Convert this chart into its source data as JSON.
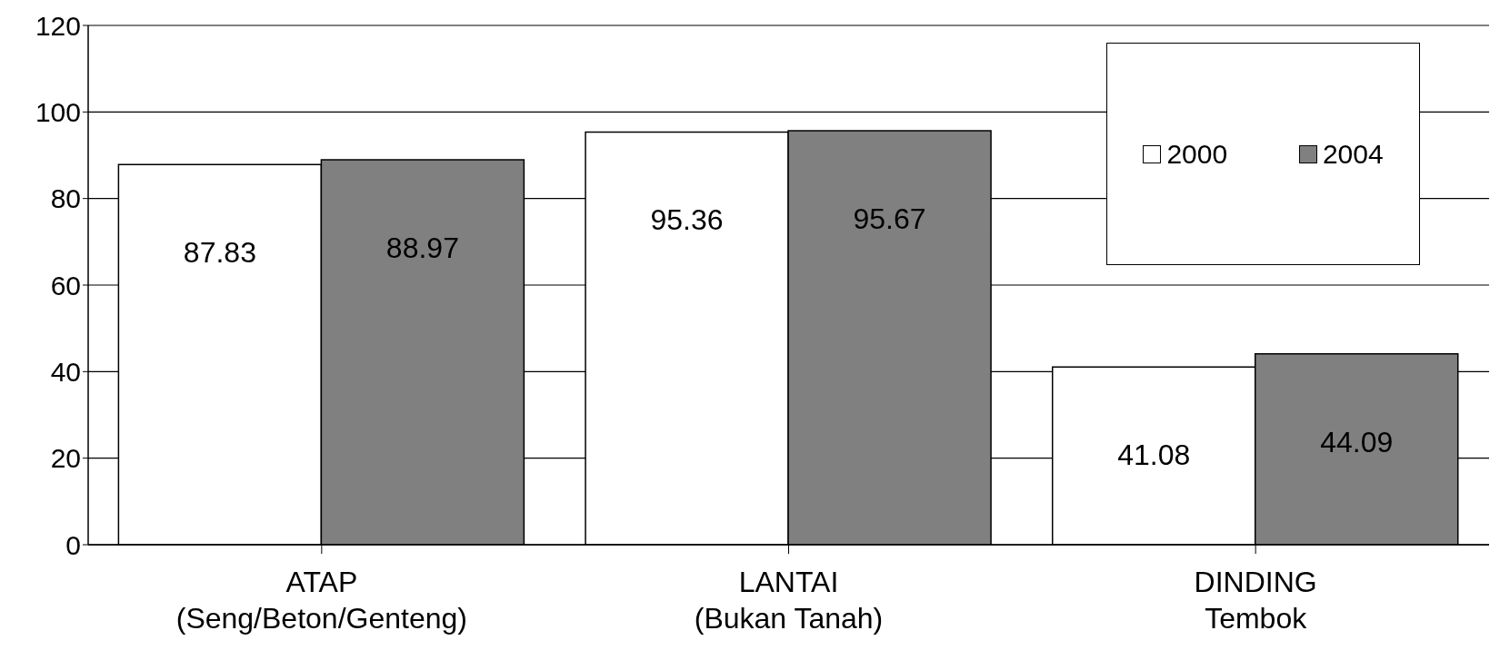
{
  "chart_data": {
    "type": "bar",
    "categories": [
      "ATAP\n(Seng/Beton/Genteng)",
      "LANTAI\n(Bukan Tanah)",
      "DINDING\nTembok"
    ],
    "series": [
      {
        "name": "2000",
        "color": "#ffffff",
        "values": [
          87.83,
          95.36,
          41.08
        ]
      },
      {
        "name": "2004",
        "color": "#808080",
        "values": [
          88.97,
          95.67,
          44.09
        ]
      }
    ],
    "ylim": [
      0,
      120
    ],
    "yticks": [
      0,
      20,
      40,
      60,
      80,
      100,
      120
    ],
    "grid": "y",
    "legend": "top right",
    "data_labels": true
  }
}
